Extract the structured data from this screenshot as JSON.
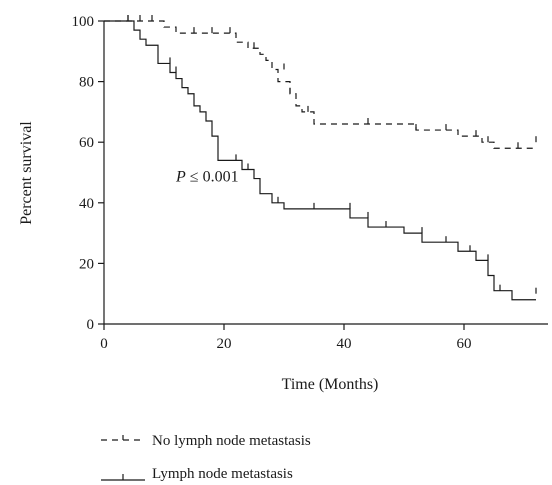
{
  "chart_data": {
    "type": "line",
    "subtype": "kaplan-meier-step",
    "title": "",
    "xlabel": "Time (Months)",
    "ylabel": "Percent survival",
    "xlim": [
      0,
      74
    ],
    "ylim": [
      0,
      100
    ],
    "xticks": [
      0,
      20,
      40,
      60
    ],
    "yticks": [
      0,
      20,
      40,
      60,
      80,
      100
    ],
    "grid": false,
    "legend_position": "bottom-left",
    "annotation": {
      "prefix": "P",
      "text": " ≤ 0.001",
      "x": 12,
      "y": 47
    },
    "series": [
      {
        "name": "No lymph node metastasis",
        "line_style": "dashed",
        "x": [
          0,
          10,
          12,
          22,
          24,
          26,
          27,
          28,
          29,
          31,
          32,
          33,
          35,
          52,
          59,
          63,
          65,
          72
        ],
        "y": [
          100,
          98,
          96,
          93,
          91,
          89,
          87,
          84,
          80,
          76,
          72,
          70,
          66,
          64,
          62,
          60,
          58,
          58
        ],
        "censored": [
          [
            4,
            100
          ],
          [
            6,
            100
          ],
          [
            8,
            100
          ],
          [
            15,
            96
          ],
          [
            18,
            96
          ],
          [
            21,
            96
          ],
          [
            25,
            91
          ],
          [
            30,
            84
          ],
          [
            31,
            76
          ],
          [
            34,
            70
          ],
          [
            44,
            66
          ],
          [
            52,
            64
          ],
          [
            57,
            64
          ],
          [
            62,
            62
          ],
          [
            64,
            60
          ],
          [
            69,
            58
          ],
          [
            72,
            60
          ]
        ]
      },
      {
        "name": "Lymph node metastasis",
        "line_style": "solid",
        "x": [
          0,
          5,
          6,
          7,
          9,
          11,
          12,
          13,
          14,
          15,
          16,
          17,
          18,
          19,
          23,
          25,
          26,
          28,
          30,
          41,
          44,
          50,
          53,
          59,
          62,
          64,
          65,
          68,
          72
        ],
        "y": [
          100,
          97,
          94,
          92,
          86,
          83,
          81,
          78,
          76,
          72,
          70,
          67,
          62,
          54,
          51,
          48,
          43,
          40,
          38,
          35,
          32,
          30,
          27,
          24,
          21,
          16,
          11,
          8,
          8
        ],
        "censored": [
          [
            4,
            100
          ],
          [
            11,
            86
          ],
          [
            12,
            83
          ],
          [
            22,
            54
          ],
          [
            24,
            51
          ],
          [
            29,
            40
          ],
          [
            35,
            38
          ],
          [
            41,
            38
          ],
          [
            44,
            35
          ],
          [
            47,
            32
          ],
          [
            53,
            30
          ],
          [
            57,
            27
          ],
          [
            61,
            24
          ],
          [
            64,
            21
          ],
          [
            66,
            11
          ],
          [
            72,
            10
          ]
        ]
      }
    ]
  }
}
